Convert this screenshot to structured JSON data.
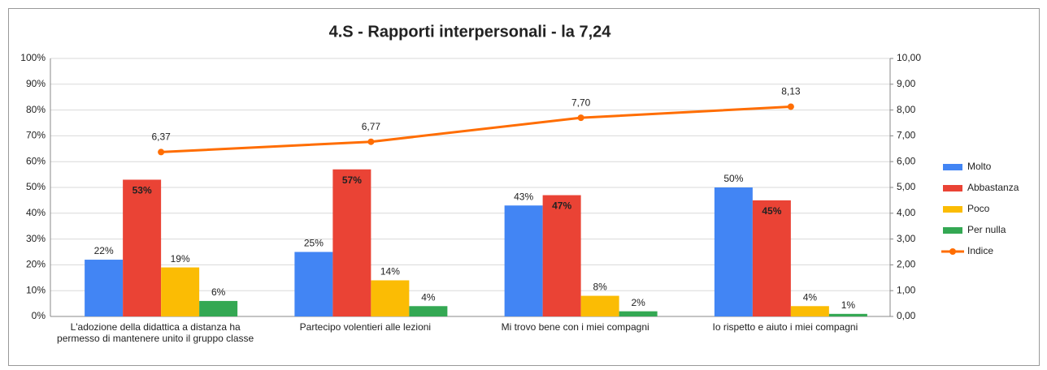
{
  "chart_data": {
    "type": "bar",
    "title": "4.S - Rapporti interpersonali - la 7,24",
    "categories": [
      "L'adozione della didattica a distanza ha permesso di mantenere unito il gruppo classe",
      "Partecipo volentieri alle lezioni",
      "Mi trovo bene con i miei compagni",
      "Io rispetto e aiuto i miei compagni"
    ],
    "series": [
      {
        "name": "Molto",
        "color": "#4285f4",
        "values": [
          22,
          25,
          43,
          50
        ],
        "value_labels": [
          "22%",
          "25%",
          "43%",
          "50%"
        ]
      },
      {
        "name": "Abbastanza",
        "color": "#ea4335",
        "values": [
          53,
          57,
          47,
          45
        ],
        "value_labels": [
          "53%",
          "57%",
          "47%",
          "45%"
        ],
        "label_position": "inside"
      },
      {
        "name": "Poco",
        "color": "#fbbc04",
        "values": [
          19,
          14,
          8,
          4
        ],
        "value_labels": [
          "19%",
          "14%",
          "8%",
          "4%"
        ]
      },
      {
        "name": "Per nulla",
        "color": "#34a853",
        "values": [
          6,
          4,
          2,
          1
        ],
        "value_labels": [
          "6%",
          "4%",
          "2%",
          "1%"
        ]
      },
      {
        "name": "Indice",
        "type": "line",
        "axis": "y2",
        "color": "#ff6d01",
        "values": [
          6.37,
          6.77,
          7.7,
          8.13
        ],
        "value_labels": [
          "6,37",
          "6,77",
          "7,70",
          "8,13"
        ]
      }
    ],
    "ylim": [
      0,
      100
    ],
    "yticks": [
      {
        "value": 0,
        "label": "0%"
      },
      {
        "value": 10,
        "label": "10%"
      },
      {
        "value": 20,
        "label": "20%"
      },
      {
        "value": 30,
        "label": "30%"
      },
      {
        "value": 40,
        "label": "40%"
      },
      {
        "value": 50,
        "label": "50%"
      },
      {
        "value": 60,
        "label": "60%"
      },
      {
        "value": 70,
        "label": "70%"
      },
      {
        "value": 80,
        "label": "80%"
      },
      {
        "value": 90,
        "label": "90%"
      },
      {
        "value": 100,
        "label": "100%"
      }
    ],
    "y2lim": [
      0,
      10
    ],
    "y2ticks": [
      {
        "value": 0,
        "label": "0,00"
      },
      {
        "value": 1,
        "label": "1,00"
      },
      {
        "value": 2,
        "label": "2,00"
      },
      {
        "value": 3,
        "label": "3,00"
      },
      {
        "value": 4,
        "label": "4,00"
      },
      {
        "value": 5,
        "label": "5,00"
      },
      {
        "value": 6,
        "label": "6,00"
      },
      {
        "value": 7,
        "label": "7,00"
      },
      {
        "value": 8,
        "label": "8,00"
      },
      {
        "value": 9,
        "label": "9,00"
      },
      {
        "value": 10,
        "label": "10,00"
      }
    ],
    "grid": true,
    "legend": "right"
  }
}
